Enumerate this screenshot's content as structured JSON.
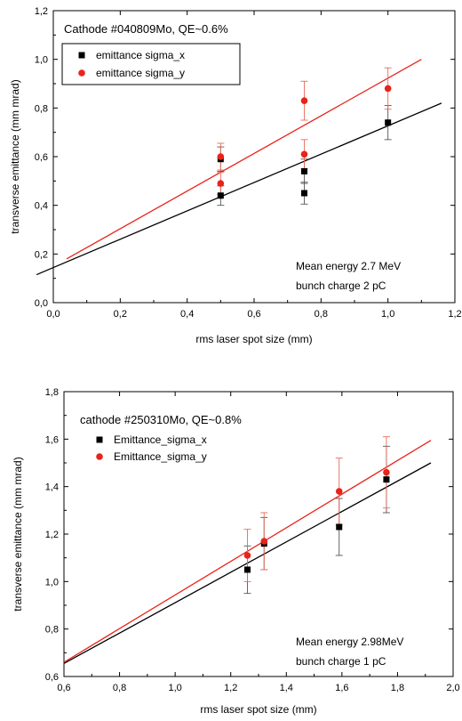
{
  "chart_data": [
    {
      "type": "scatter",
      "title": "Cathode #040809Mo, QE~0.6%",
      "xlabel": "rms laser spot size (mm)",
      "ylabel": "transverse emittance (mm mrad)",
      "xlim": [
        0.0,
        1.2
      ],
      "ylim": [
        0.0,
        1.2
      ],
      "x_ticks": [
        0.0,
        0.2,
        0.4,
        0.6,
        0.8,
        1.0,
        1.2
      ],
      "y_ticks": [
        0.0,
        0.2,
        0.4,
        0.6,
        0.8,
        1.0,
        1.2
      ],
      "x_tick_labels": [
        "0,0",
        "0,2",
        "0,4",
        "0,6",
        "0,8",
        "1,0",
        "1,2"
      ],
      "y_tick_labels": [
        "0,0",
        "0,2",
        "0,4",
        "0,6",
        "0,8",
        "1,0",
        "1,2"
      ],
      "annotations": [
        "Mean energy 2.7 MeV",
        "bunch charge 2 pC"
      ],
      "legend_position": "top-left",
      "series": [
        {
          "name": "emittance sigma_x",
          "color": "#000000",
          "marker": "square",
          "points": [
            {
              "x": 0.5,
              "y": 0.59,
              "err": 0.05
            },
            {
              "x": 0.5,
              "y": 0.44,
              "err": 0.04
            },
            {
              "x": 0.75,
              "y": 0.54,
              "err": 0.05
            },
            {
              "x": 0.75,
              "y": 0.45,
              "err": 0.045
            },
            {
              "x": 1.0,
              "y": 0.74,
              "err": 0.07
            }
          ],
          "fit": {
            "x": [
              -0.05,
              1.16
            ],
            "y": [
              0.115,
              0.82
            ]
          }
        },
        {
          "name": "emittance sigma_y",
          "color": "#e8231a",
          "marker": "circle",
          "points": [
            {
              "x": 0.5,
              "y": 0.6,
              "err": 0.055
            },
            {
              "x": 0.5,
              "y": 0.49,
              "err": 0.045
            },
            {
              "x": 0.75,
              "y": 0.83,
              "err": 0.08
            },
            {
              "x": 0.75,
              "y": 0.61,
              "err": 0.06
            },
            {
              "x": 1.0,
              "y": 0.88,
              "err": 0.085
            }
          ],
          "fit": {
            "x": [
              0.04,
              1.1
            ],
            "y": [
              0.18,
              1.0
            ]
          }
        }
      ]
    },
    {
      "type": "scatter",
      "title": "cathode #250310Mo, QE~0.8%",
      "xlabel": "rms laser spot size (mm)",
      "ylabel": "transverse emittance (mm mrad)",
      "xlim": [
        0.6,
        2.0
      ],
      "ylim": [
        0.6,
        1.8
      ],
      "x_ticks": [
        0.6,
        0.8,
        1.0,
        1.2,
        1.4,
        1.6,
        1.8,
        2.0
      ],
      "y_ticks": [
        0.6,
        0.8,
        1.0,
        1.2,
        1.4,
        1.6,
        1.8
      ],
      "x_tick_labels": [
        "0,6",
        "0,8",
        "1,0",
        "1,2",
        "1,4",
        "1,6",
        "1,8",
        "2,0"
      ],
      "y_tick_labels": [
        "0,6",
        "0,8",
        "1,0",
        "1,2",
        "1,4",
        "1,6",
        "1,8"
      ],
      "annotations": [
        "Mean energy 2.98MeV",
        "bunch charge 1 pC"
      ],
      "legend_position": "top-left",
      "series": [
        {
          "name": "Emittance_sigma_x",
          "color": "#000000",
          "marker": "square",
          "points": [
            {
              "x": 1.26,
              "y": 1.05,
              "err": 0.1
            },
            {
              "x": 1.32,
              "y": 1.16,
              "err": 0.11
            },
            {
              "x": 1.59,
              "y": 1.23,
              "err": 0.12
            },
            {
              "x": 1.76,
              "y": 1.43,
              "err": 0.14
            }
          ],
          "fit": {
            "x": [
              0.6,
              1.92
            ],
            "y": [
              0.655,
              1.5
            ]
          }
        },
        {
          "name": "Emittance_sigma_y",
          "color": "#e8231a",
          "marker": "circle",
          "points": [
            {
              "x": 1.26,
              "y": 1.11,
              "err": 0.11
            },
            {
              "x": 1.32,
              "y": 1.17,
              "err": 0.12
            },
            {
              "x": 1.59,
              "y": 1.38,
              "err": 0.14
            },
            {
              "x": 1.76,
              "y": 1.46,
              "err": 0.15
            }
          ],
          "fit": {
            "x": [
              0.6,
              1.92
            ],
            "y": [
              0.66,
              1.595
            ]
          }
        }
      ]
    }
  ]
}
